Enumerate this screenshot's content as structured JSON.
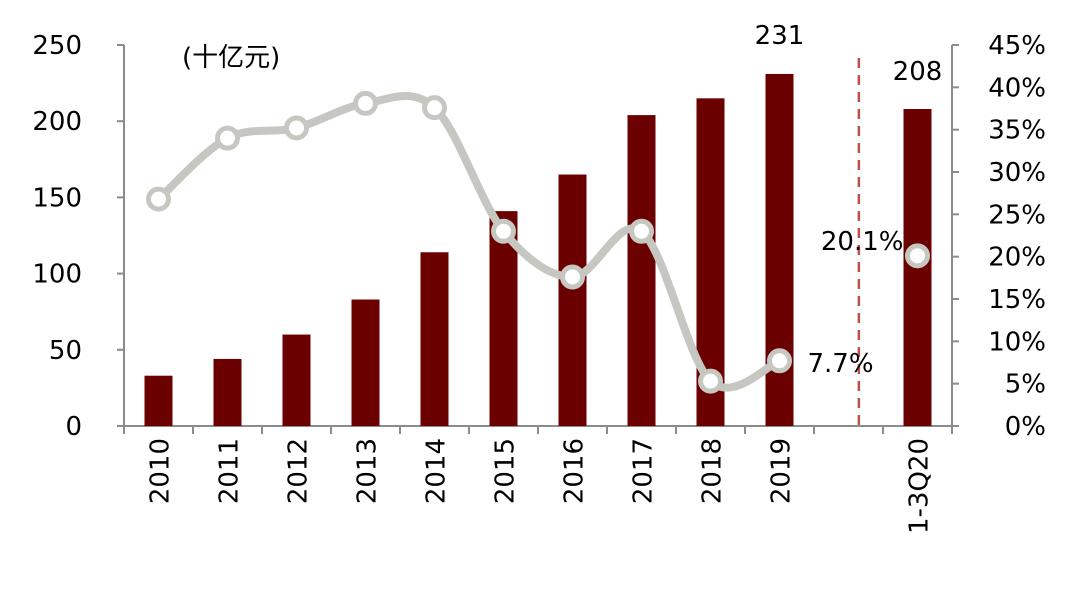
{
  "chart_data": {
    "type": "bar",
    "unit_label": "(十亿元)",
    "categories": [
      "2010",
      "2011",
      "2012",
      "2013",
      "2014",
      "2015",
      "2016",
      "2017",
      "2018",
      "2019",
      "",
      "1-3Q20"
    ],
    "series": [
      {
        "values": [
          33,
          44,
          60,
          83,
          114,
          141,
          165,
          204,
          215,
          231,
          null,
          208
        ],
        "color": "#6B0000"
      },
      {
        "values": [
          26.8,
          34.0,
          35.2,
          38.1,
          37.6,
          23.0,
          17.6,
          23.0,
          5.3,
          7.7,
          null,
          20.1
        ],
        "color": "#C7C7C2"
      }
    ],
    "y_left": {
      "min": 0,
      "max": 250,
      "ticks": [
        "0",
        "50",
        "100",
        "150",
        "200",
        "250"
      ]
    },
    "y_right": {
      "min": 0,
      "max": 45,
      "ticks": [
        "0%",
        "5%",
        "10%",
        "15%",
        "20%",
        "25%",
        "30%",
        "35%",
        "40%",
        "45%"
      ]
    },
    "data_labels": {
      "bar_2019": "231",
      "bar_1_3Q20": "208",
      "line_2019": "7.7%",
      "line_1_3Q20": "20.1%"
    },
    "divider_color": "#C0504D"
  }
}
